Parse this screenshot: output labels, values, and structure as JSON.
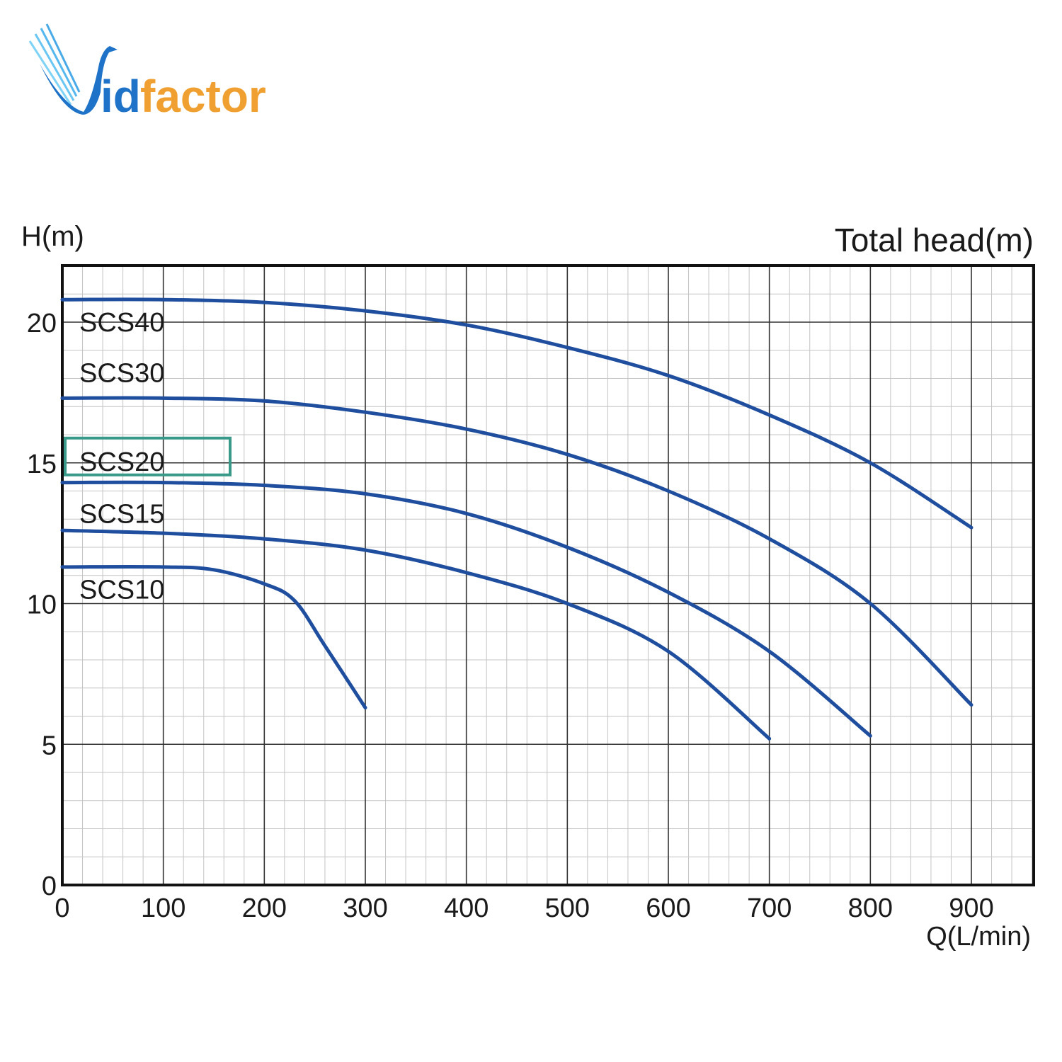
{
  "logo": {
    "text_vid": "Vid",
    "text_i": "id",
    "text_factor": "factor",
    "full": "Vidfactor",
    "colors": {
      "blue": "#1e73c8",
      "orange": "#f0a030",
      "light_blue": "#7fd3f7"
    }
  },
  "chart_data": {
    "type": "line",
    "title": "Total head(m)",
    "xlabel": "Q(L/min)",
    "ylabel": "H(m)",
    "xlim": [
      0,
      960
    ],
    "ylim": [
      0,
      22
    ],
    "x_ticks": [
      "0",
      "100",
      "200",
      "300",
      "400",
      "500",
      "600",
      "700",
      "800",
      "900"
    ],
    "y_ticks": [
      "0",
      "5",
      "10",
      "15",
      "20"
    ],
    "grid": true,
    "line_color": "#1f4e9e",
    "highlight_label": "SCS20",
    "highlight_color": "#3a9a8a",
    "series": [
      {
        "name": "SCS40",
        "label_y": 20,
        "x": [
          0,
          100,
          200,
          300,
          400,
          500,
          600,
          700,
          800,
          900
        ],
        "y": [
          20.8,
          20.8,
          20.7,
          20.4,
          19.9,
          19.1,
          18.1,
          16.7,
          15.0,
          12.7
        ]
      },
      {
        "name": "SCS30",
        "label_y": 18.2,
        "x": [
          0,
          100,
          200,
          300,
          400,
          500,
          600,
          700,
          800,
          900
        ],
        "y": [
          17.3,
          17.3,
          17.2,
          16.8,
          16.2,
          15.3,
          14.0,
          12.3,
          10.0,
          6.4
        ]
      },
      {
        "name": "SCS20",
        "label_y": 15.05,
        "x": [
          0,
          100,
          200,
          300,
          400,
          500,
          600,
          700,
          800
        ],
        "y": [
          14.3,
          14.3,
          14.2,
          13.9,
          13.2,
          12.0,
          10.4,
          8.3,
          5.3
        ]
      },
      {
        "name": "SCS15",
        "label_y": 13.2,
        "x": [
          0,
          100,
          200,
          300,
          400,
          500,
          600,
          700
        ],
        "y": [
          12.6,
          12.5,
          12.3,
          11.9,
          11.1,
          10.0,
          8.3,
          5.2
        ]
      },
      {
        "name": "SCS10",
        "label_y": 10.5,
        "x": [
          0,
          100,
          150,
          200,
          230,
          260,
          300
        ],
        "y": [
          11.3,
          11.3,
          11.2,
          10.7,
          10.1,
          8.5,
          6.3
        ]
      }
    ]
  }
}
